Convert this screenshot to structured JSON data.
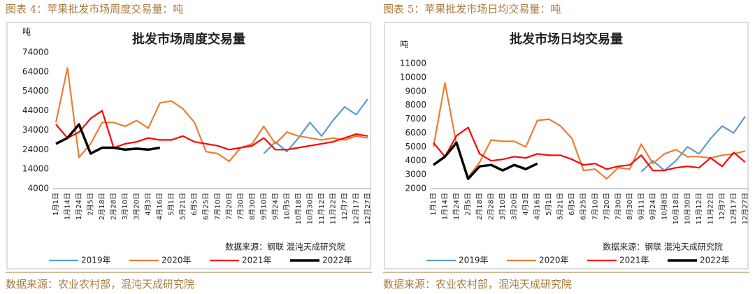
{
  "chart_data": [
    {
      "type": "line",
      "caption": "图表 4：苹果批发市场周度交易量：吨",
      "title": "批发市场周度交易量",
      "y_label": "吨",
      "source_note": "数据来源：钢联    混沌天成研究院",
      "footer": "数据来源：农业农村部，混沌天成研究院",
      "categories": [
        "1月1日",
        "1月14日",
        "1月24日",
        "2月5日",
        "2月18日",
        "2月28日",
        "3月10日",
        "3月20日",
        "4月3日",
        "4月16日",
        "5月1日",
        "5月21日",
        "6月5日",
        "6月25日",
        "7月10日",
        "7月20日",
        "7月30日",
        "8月30日",
        "9月10日",
        "9月24日",
        "10月5日",
        "10月18日",
        "10月30日",
        "11月12日",
        "11月22日",
        "12月7日",
        "12月17日",
        "12月27日"
      ],
      "ylim": [
        4000,
        74000
      ],
      "yticks": [
        4000,
        14000,
        24000,
        34000,
        44000,
        54000,
        64000,
        74000
      ],
      "grid": false,
      "series": [
        {
          "name": "2019年",
          "color": "#5b9bd5",
          "values": [
            null,
            null,
            null,
            null,
            null,
            null,
            null,
            null,
            null,
            null,
            null,
            null,
            null,
            null,
            null,
            null,
            null,
            null,
            22000,
            28000,
            23000,
            30000,
            38000,
            31000,
            39000,
            46000,
            42000,
            50000
          ]
        },
        {
          "name": "2020年",
          "color": "#ed7d31",
          "values": [
            38000,
            66000,
            20000,
            27000,
            38000,
            38000,
            36000,
            39000,
            35000,
            48000,
            49000,
            45000,
            38000,
            23000,
            22000,
            18000,
            25000,
            27000,
            36000,
            27000,
            33000,
            31000,
            30000,
            29000,
            30000,
            29000,
            31000,
            30000
          ]
        },
        {
          "name": "2021年",
          "color": "#ff0000",
          "values": [
            37000,
            30000,
            33000,
            40000,
            44000,
            25000,
            27000,
            28000,
            30000,
            29000,
            29000,
            31000,
            28000,
            27000,
            26000,
            24000,
            25000,
            26000,
            30000,
            24000,
            24000,
            25000,
            26000,
            27000,
            28000,
            30000,
            32000,
            31000
          ]
        },
        {
          "name": "2022年",
          "color": "#000000",
          "values": [
            27000,
            30000,
            37000,
            22000,
            25000,
            25000,
            24000,
            24500,
            24000,
            25000,
            null,
            null,
            null,
            null,
            null,
            null,
            null,
            null,
            null,
            null,
            null,
            null,
            null,
            null,
            null,
            null,
            null,
            null
          ]
        }
      ]
    },
    {
      "type": "line",
      "caption": "图表 5：苹果批发市场日均交易量：吨",
      "title": "批发市场日均交易量",
      "y_label": "吨",
      "source_note": "数据来源：钢联    混沌天成研究院",
      "footer": "数据来源：农业农村部，混沌天成研究院",
      "categories": [
        "1月1日",
        "1月14日",
        "1月24日",
        "2月5日",
        "2月18日",
        "2月28日",
        "3月10日",
        "3月20日",
        "4月3日",
        "4月16日",
        "5月1日",
        "5月21日",
        "6月5日",
        "6月25日",
        "7月10日",
        "7月20日",
        "7月30日",
        "8月30日",
        "9月11日",
        "9月24日",
        "10月8日",
        "10月18日",
        "10月30日",
        "11月12日",
        "11月22日",
        "12月7日",
        "12月17日",
        "12月27日"
      ],
      "ylim": [
        2000,
        11000
      ],
      "yticks": [
        2000,
        3000,
        4000,
        5000,
        6000,
        7000,
        8000,
        9000,
        10000,
        11000
      ],
      "grid": false,
      "series": [
        {
          "name": "2019年",
          "color": "#5b9bd5",
          "values": [
            null,
            null,
            null,
            null,
            null,
            null,
            null,
            null,
            null,
            null,
            null,
            null,
            null,
            null,
            null,
            null,
            null,
            null,
            3200,
            4000,
            3300,
            4000,
            5000,
            4500,
            5600,
            6500,
            6000,
            7200
          ]
        },
        {
          "name": "2020年",
          "color": "#ed7d31",
          "values": [
            5000,
            9600,
            5200,
            2800,
            3900,
            5500,
            5400,
            5400,
            5000,
            6900,
            7000,
            6500,
            5600,
            3300,
            3400,
            2700,
            3500,
            3400,
            5200,
            3800,
            4500,
            4800,
            4300,
            4300,
            4200,
            4400,
            4500,
            4700
          ]
        },
        {
          "name": "2021年",
          "color": "#ff0000",
          "values": [
            5300,
            4300,
            5800,
            6400,
            4500,
            4000,
            4100,
            4300,
            4200,
            4500,
            4400,
            4400,
            4100,
            3700,
            3800,
            3400,
            3600,
            3700,
            4400,
            3300,
            3300,
            3500,
            3600,
            3500,
            4200,
            3600,
            4600,
            3900
          ]
        },
        {
          "name": "2022年",
          "color": "#000000",
          "values": [
            3700,
            4300,
            5300,
            2700,
            3600,
            3700,
            3300,
            3700,
            3400,
            3800,
            null,
            null,
            null,
            null,
            null,
            null,
            null,
            null,
            null,
            null,
            null,
            null,
            null,
            null,
            null,
            null,
            null,
            null
          ]
        }
      ]
    }
  ]
}
